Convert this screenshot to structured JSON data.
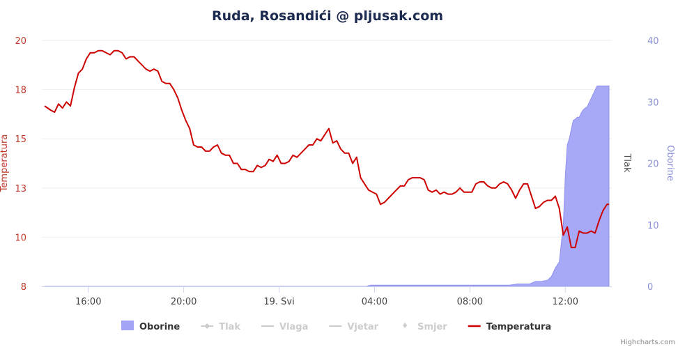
{
  "chart_data": {
    "type": "line",
    "title": "Ruda, Rosandići @ pljusak.com",
    "x_ticks": [
      "16:00",
      "20:00",
      "19. Svi",
      "04:00",
      "08:00",
      "12:00"
    ],
    "y_left": {
      "label": "Temperatura",
      "ticks": [
        "8",
        "10",
        "13",
        "15",
        "18",
        "20"
      ],
      "range": [
        8,
        20
      ]
    },
    "y_right_tlak": {
      "label": "Tlak"
    },
    "y_right": {
      "label": "Oborine",
      "ticks": [
        "0",
        "10",
        "20",
        "30",
        "40"
      ],
      "range": [
        0,
        40
      ]
    },
    "grid": true,
    "legend_position": "bottom",
    "series": [
      {
        "name": "Oborine",
        "kind": "area",
        "color": "#a3a4f5",
        "x": [
          "2023-05-18 14:10",
          "2023-05-19 03:40",
          "2023-05-19 03:50",
          "2023-05-19 09:40",
          "2023-05-19 10:00",
          "2023-05-19 10:30",
          "2023-05-19 10:45",
          "2023-05-19 11:00",
          "2023-05-19 11:15",
          "2023-05-19 11:25",
          "2023-05-19 11:35",
          "2023-05-19 11:45",
          "2023-05-19 11:50",
          "2023-05-19 11:55",
          "2023-05-19 11:57",
          "2023-05-19 12:00",
          "2023-05-19 12:05",
          "2023-05-19 12:10",
          "2023-05-19 12:15",
          "2023-05-19 12:20",
          "2023-05-19 12:25",
          "2023-05-19 12:30",
          "2023-05-19 12:35",
          "2023-05-19 12:40",
          "2023-05-19 12:45",
          "2023-05-19 12:50",
          "2023-05-19 12:55",
          "2023-05-19 13:20",
          "2023-05-19 13:50"
        ],
        "values": [
          0,
          0,
          0.2,
          0.2,
          0.4,
          0.4,
          0.8,
          0.8,
          1.0,
          1.6,
          3.0,
          4.0,
          7.0,
          10.0,
          13.0,
          18.0,
          23.0,
          24.0,
          25.5,
          27.0,
          27.2,
          27.5,
          27.5,
          28.2,
          28.7,
          29.0,
          29.2,
          32.6,
          32.6
        ]
      },
      {
        "name": "Tlak",
        "kind": "line",
        "color": "#cccccc",
        "values": []
      },
      {
        "name": "Vlaga",
        "kind": "line",
        "color": "#cccccc",
        "values": []
      },
      {
        "name": "Vjetar",
        "kind": "line",
        "color": "#cccccc",
        "values": []
      },
      {
        "name": "Smjer",
        "kind": "scatter",
        "color": "#cccccc",
        "values": []
      },
      {
        "name": "Temperatura",
        "kind": "line",
        "color": "#cc0000",
        "x": [
          "2023-05-18 14:10",
          "2023-05-18 14:25",
          "2023-05-18 14:35",
          "2023-05-18 14:45",
          "2023-05-18 14:55",
          "2023-05-18 15:05",
          "2023-05-18 15:15",
          "2023-05-18 15:25",
          "2023-05-18 15:35",
          "2023-05-18 15:45",
          "2023-05-18 15:55",
          "2023-05-18 16:05",
          "2023-05-18 16:15",
          "2023-05-18 16:25",
          "2023-05-18 16:35",
          "2023-05-18 16:45",
          "2023-05-18 16:55",
          "2023-05-18 17:05",
          "2023-05-18 17:15",
          "2023-05-18 17:25",
          "2023-05-18 17:35",
          "2023-05-18 17:45",
          "2023-05-18 17:55",
          "2023-05-18 18:05",
          "2023-05-18 18:15",
          "2023-05-18 18:25",
          "2023-05-18 18:35",
          "2023-05-18 18:45",
          "2023-05-18 18:55",
          "2023-05-18 19:05",
          "2023-05-18 19:15",
          "2023-05-18 19:25",
          "2023-05-18 19:35",
          "2023-05-18 19:45",
          "2023-05-18 19:55",
          "2023-05-18 20:05",
          "2023-05-18 20:15",
          "2023-05-18 20:25",
          "2023-05-18 20:35",
          "2023-05-18 20:45",
          "2023-05-18 20:55",
          "2023-05-18 21:05",
          "2023-05-18 21:15",
          "2023-05-18 21:25",
          "2023-05-18 21:35",
          "2023-05-18 21:45",
          "2023-05-18 21:55",
          "2023-05-18 22:05",
          "2023-05-18 22:15",
          "2023-05-18 22:25",
          "2023-05-18 22:35",
          "2023-05-18 22:45",
          "2023-05-18 22:55",
          "2023-05-18 23:05",
          "2023-05-18 23:15",
          "2023-05-18 23:25",
          "2023-05-18 23:35",
          "2023-05-18 23:45",
          "2023-05-18 23:55",
          "2023-05-19 00:05",
          "2023-05-19 00:15",
          "2023-05-19 00:25",
          "2023-05-19 00:35",
          "2023-05-19 00:45",
          "2023-05-19 00:55",
          "2023-05-19 01:05",
          "2023-05-19 01:15",
          "2023-05-19 01:25",
          "2023-05-19 01:35",
          "2023-05-19 01:45",
          "2023-05-19 01:55",
          "2023-05-19 02:05",
          "2023-05-19 02:15",
          "2023-05-19 02:25",
          "2023-05-19 02:35",
          "2023-05-19 02:45",
          "2023-05-19 02:55",
          "2023-05-19 03:05",
          "2023-05-19 03:15",
          "2023-05-19 03:25",
          "2023-05-19 03:35",
          "2023-05-19 03:45",
          "2023-05-19 03:55",
          "2023-05-19 04:05",
          "2023-05-19 04:15",
          "2023-05-19 04:25",
          "2023-05-19 04:35",
          "2023-05-19 04:45",
          "2023-05-19 04:55",
          "2023-05-19 05:05",
          "2023-05-19 05:15",
          "2023-05-19 05:25",
          "2023-05-19 05:35",
          "2023-05-19 05:45",
          "2023-05-19 05:55",
          "2023-05-19 06:05",
          "2023-05-19 06:15",
          "2023-05-19 06:25",
          "2023-05-19 06:35",
          "2023-05-19 06:45",
          "2023-05-19 06:55",
          "2023-05-19 07:05",
          "2023-05-19 07:15",
          "2023-05-19 07:25",
          "2023-05-19 07:35",
          "2023-05-19 07:45",
          "2023-05-19 07:55",
          "2023-05-19 08:05",
          "2023-05-19 08:15",
          "2023-05-19 08:25",
          "2023-05-19 08:35",
          "2023-05-19 08:45",
          "2023-05-19 08:55",
          "2023-05-19 09:05",
          "2023-05-19 09:15",
          "2023-05-19 09:25",
          "2023-05-19 09:35",
          "2023-05-19 09:45",
          "2023-05-19 09:55",
          "2023-05-19 10:05",
          "2023-05-19 10:15",
          "2023-05-19 10:25",
          "2023-05-19 10:35",
          "2023-05-19 10:45",
          "2023-05-19 10:55",
          "2023-05-19 11:05",
          "2023-05-19 11:15",
          "2023-05-19 11:25",
          "2023-05-19 11:35",
          "2023-05-19 11:45",
          "2023-05-19 11:55",
          "2023-05-19 12:05",
          "2023-05-19 12:15",
          "2023-05-19 12:25",
          "2023-05-19 12:35",
          "2023-05-19 12:45",
          "2023-05-19 12:55",
          "2023-05-19 13:05",
          "2023-05-19 13:15",
          "2023-05-19 13:25",
          "2023-05-19 13:35",
          "2023-05-19 13:45",
          "2023-05-19 13:50"
        ],
        "values": [
          16.8,
          16.6,
          16.5,
          16.9,
          16.7,
          17.0,
          16.8,
          17.7,
          18.4,
          18.6,
          19.1,
          19.4,
          19.4,
          19.5,
          19.5,
          19.4,
          19.3,
          19.5,
          19.5,
          19.4,
          19.1,
          19.2,
          19.2,
          19.0,
          18.8,
          18.6,
          18.5,
          18.6,
          18.5,
          18.0,
          17.9,
          17.9,
          17.6,
          17.2,
          16.6,
          16.1,
          15.7,
          14.9,
          14.8,
          14.8,
          14.6,
          14.6,
          14.8,
          14.9,
          14.5,
          14.4,
          14.4,
          14.0,
          14.0,
          13.7,
          13.7,
          13.6,
          13.6,
          13.9,
          13.8,
          13.9,
          14.2,
          14.1,
          14.4,
          14.0,
          14.0,
          14.1,
          14.4,
          14.3,
          14.5,
          14.7,
          14.9,
          14.9,
          15.2,
          15.1,
          15.4,
          15.7,
          15.0,
          15.1,
          14.7,
          14.5,
          14.5,
          14.0,
          14.3,
          13.3,
          13.0,
          12.7,
          12.6,
          12.5,
          12.0,
          12.1,
          12.3,
          12.5,
          12.7,
          12.9,
          12.9,
          13.2,
          13.3,
          13.3,
          13.3,
          13.2,
          12.7,
          12.6,
          12.7,
          12.5,
          12.6,
          12.5,
          12.5,
          12.6,
          12.8,
          12.6,
          12.6,
          12.6,
          13.0,
          13.1,
          13.1,
          12.9,
          12.8,
          12.8,
          13.0,
          13.1,
          13.0,
          12.7,
          12.3,
          12.7,
          13.0,
          13.0,
          12.4,
          11.8,
          11.9,
          12.1,
          12.2,
          12.2,
          12.4,
          11.8,
          10.5,
          10.9,
          9.9,
          9.9,
          10.7,
          10.6,
          10.6,
          10.7,
          10.6,
          11.2,
          11.7,
          12.0,
          12.0
        ]
      }
    ]
  },
  "credit": "Highcharts.com"
}
